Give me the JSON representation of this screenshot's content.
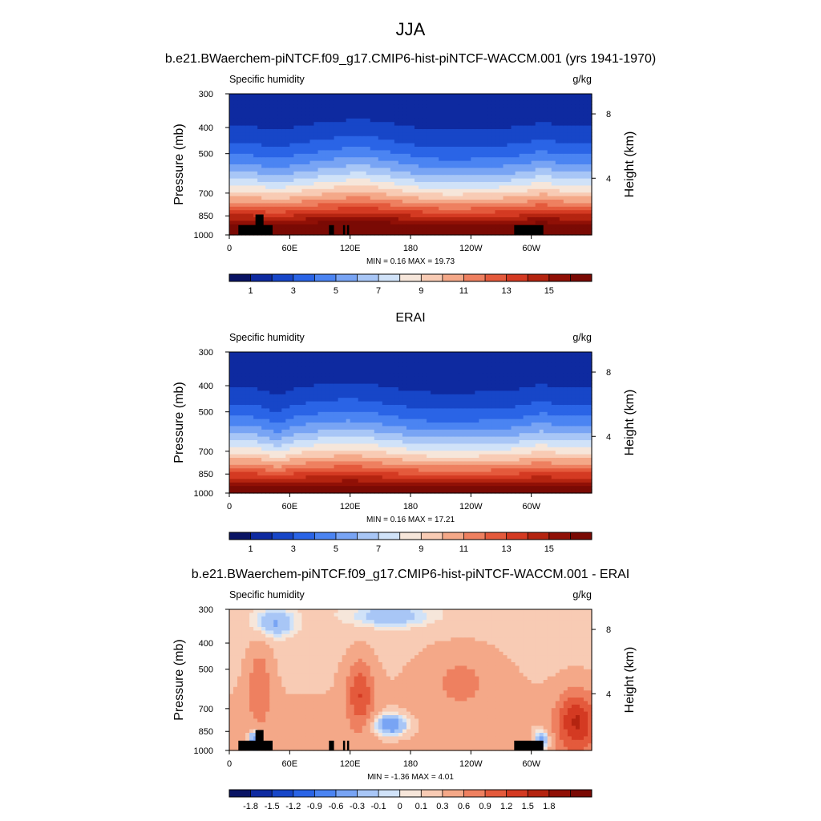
{
  "figure_title": "JJA",
  "chart_data": [
    {
      "type": "heatmap",
      "panel_title": "b.e21.BWaerchem-piNTCF.f09_g17.CMIP6-hist-piNTCF-WACCM.001 (yrs 1941-1970)",
      "left_string": "Specific humidity",
      "right_string": "g/kg",
      "ylabel": "Pressure (mb)",
      "ylabel_right": "Height (km)",
      "x_ticks": [
        "0",
        "60E",
        "120E",
        "180",
        "120W",
        "60W"
      ],
      "x_tick_values": [
        0,
        60,
        120,
        180,
        240,
        300
      ],
      "x_range": [
        0,
        360
      ],
      "y_ticks": [
        "300",
        "400",
        "500",
        "700",
        "850",
        "1000"
      ],
      "y_tick_values": [
        300,
        400,
        500,
        700,
        850,
        1000
      ],
      "y_range": [
        1000,
        300
      ],
      "height_ticks": [
        "8",
        "4"
      ],
      "height_tick_values": [
        8,
        4
      ],
      "stats_text": "MIN =   0.16  MAX =  19.73",
      "colorbar_labels": [
        "1",
        "3",
        "5",
        "7",
        "9",
        "11",
        "13",
        "15"
      ],
      "colorbar_levels": [
        0,
        1,
        2,
        3,
        4,
        5,
        6,
        7,
        8,
        9,
        10,
        11,
        12,
        13,
        14,
        15,
        16
      ]
    },
    {
      "type": "heatmap",
      "panel_title": "ERAI",
      "left_string": "Specific humidity",
      "right_string": "g/kg",
      "ylabel": "Pressure (mb)",
      "ylabel_right": "Height (km)",
      "x_ticks": [
        "0",
        "60E",
        "120E",
        "180",
        "120W",
        "60W"
      ],
      "x_tick_values": [
        0,
        60,
        120,
        180,
        240,
        300
      ],
      "x_range": [
        0,
        360
      ],
      "y_ticks": [
        "300",
        "400",
        "500",
        "700",
        "850",
        "1000"
      ],
      "y_tick_values": [
        300,
        400,
        500,
        700,
        850,
        1000
      ],
      "y_range": [
        1000,
        300
      ],
      "height_ticks": [
        "8",
        "4"
      ],
      "height_tick_values": [
        8,
        4
      ],
      "stats_text": "MIN =   0.16  MAX =  17.21",
      "colorbar_labels": [
        "1",
        "3",
        "5",
        "7",
        "9",
        "11",
        "13",
        "15"
      ],
      "colorbar_levels": [
        0,
        1,
        2,
        3,
        4,
        5,
        6,
        7,
        8,
        9,
        10,
        11,
        12,
        13,
        14,
        15,
        16
      ]
    },
    {
      "type": "heatmap",
      "panel_title": "b.e21.BWaerchem-piNTCF.f09_g17.CMIP6-hist-piNTCF-WACCM.001 - ERAI",
      "left_string": "Specific humidity",
      "right_string": "g/kg",
      "ylabel": "Pressure (mb)",
      "ylabel_right": "Height (km)",
      "x_ticks": [
        "0",
        "60E",
        "120E",
        "180",
        "120W",
        "60W"
      ],
      "x_tick_values": [
        0,
        60,
        120,
        180,
        240,
        300
      ],
      "x_range": [
        0,
        360
      ],
      "y_ticks": [
        "300",
        "400",
        "500",
        "700",
        "850",
        "1000"
      ],
      "y_tick_values": [
        300,
        400,
        500,
        700,
        850,
        1000
      ],
      "y_range": [
        1000,
        300
      ],
      "height_ticks": [
        "8",
        "4"
      ],
      "height_tick_values": [
        8,
        4
      ],
      "stats_text": "MIN =  -1.36  MAX =   4.01",
      "colorbar_labels": [
        "-1.8",
        "-1.5",
        "-1.2",
        "-0.9",
        "-0.6",
        "-0.3",
        "-0.1",
        "0",
        "0.1",
        "0.3",
        "0.6",
        "0.9",
        "1.2",
        "1.5",
        "1.8"
      ],
      "colorbar_levels": [
        -1.8,
        -1.5,
        -1.2,
        -0.9,
        -0.6,
        -0.3,
        -0.1,
        0,
        0.1,
        0.3,
        0.6,
        0.9,
        1.2,
        1.5,
        1.8
      ]
    }
  ],
  "colors": {
    "palette": [
      "#0a1464",
      "#0e2aa0",
      "#1746c8",
      "#2a64e6",
      "#4b84f2",
      "#78a4f4",
      "#a8c6f6",
      "#d0e2f8",
      "#f6e6da",
      "#f8cbb4",
      "#f4a888",
      "#ee8060",
      "#e45a3c",
      "#d43a22",
      "#b42410",
      "#901006",
      "#7a0a04"
    ],
    "land": "#000000"
  }
}
